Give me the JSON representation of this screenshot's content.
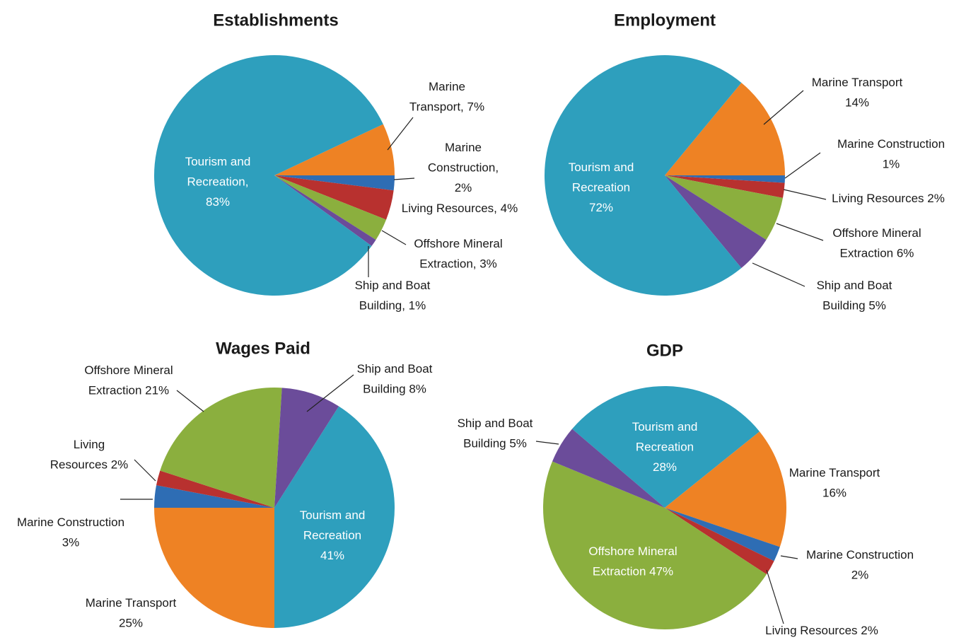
{
  "chart_data": [
    {
      "type": "pie",
      "title": "Establishments",
      "values": [
        7,
        2,
        4,
        3,
        1,
        83
      ],
      "value_labels": [
        "Marine Transport, 7%",
        "Marine Construction, 2%",
        "Living Resources, 4%",
        "Offshore Mineral Extraction, 3%",
        "Ship and Boat Building, 1%",
        "Tourism and Recreation, 83%"
      ],
      "colors": [
        "#ee8224",
        "#2e6db4",
        "#b8312f",
        "#8baf3e",
        "#6b4c9a",
        "#2e9fbd"
      ]
    },
    {
      "type": "pie",
      "title": "Employment",
      "values": [
        14,
        1,
        2,
        6,
        5,
        72
      ],
      "value_labels": [
        "Marine Transport 14%",
        "Marine Construction 1%",
        "Living Resources 2%",
        "Offshore Mineral Extraction 6%",
        "Ship and Boat Building 5%",
        "Tourism and Recreation 72%"
      ],
      "colors": [
        "#ee8224",
        "#2e6db4",
        "#b8312f",
        "#8baf3e",
        "#6b4c9a",
        "#2e9fbd"
      ]
    },
    {
      "type": "pie",
      "title": "Wages Paid",
      "values": [
        41,
        25,
        3,
        2,
        21,
        8
      ],
      "value_labels": [
        "Tourism and Recreation 41%",
        "Marine Transport 25%",
        "Marine Construction 3%",
        "Living Resources 2%",
        "Offshore Mineral Extraction 21%",
        "Ship and Boat Building 8%"
      ],
      "colors": [
        "#2e9fbd",
        "#ee8224",
        "#2e6db4",
        "#b8312f",
        "#8baf3e",
        "#6b4c9a"
      ]
    },
    {
      "type": "pie",
      "title": "GDP",
      "values": [
        28,
        16,
        2,
        2,
        47,
        5
      ],
      "value_labels": [
        "Tourism and Recreation 28%",
        "Marine Transport 16%",
        "Marine Construction 2%",
        "Living Resources 2%",
        "Offshore Mineral Extraction 47%",
        "Ship and Boat Building 5%"
      ],
      "colors": [
        "#2e9fbd",
        "#ee8224",
        "#2e6db4",
        "#b8312f",
        "#8baf3e",
        "#6b4c9a"
      ]
    }
  ]
}
